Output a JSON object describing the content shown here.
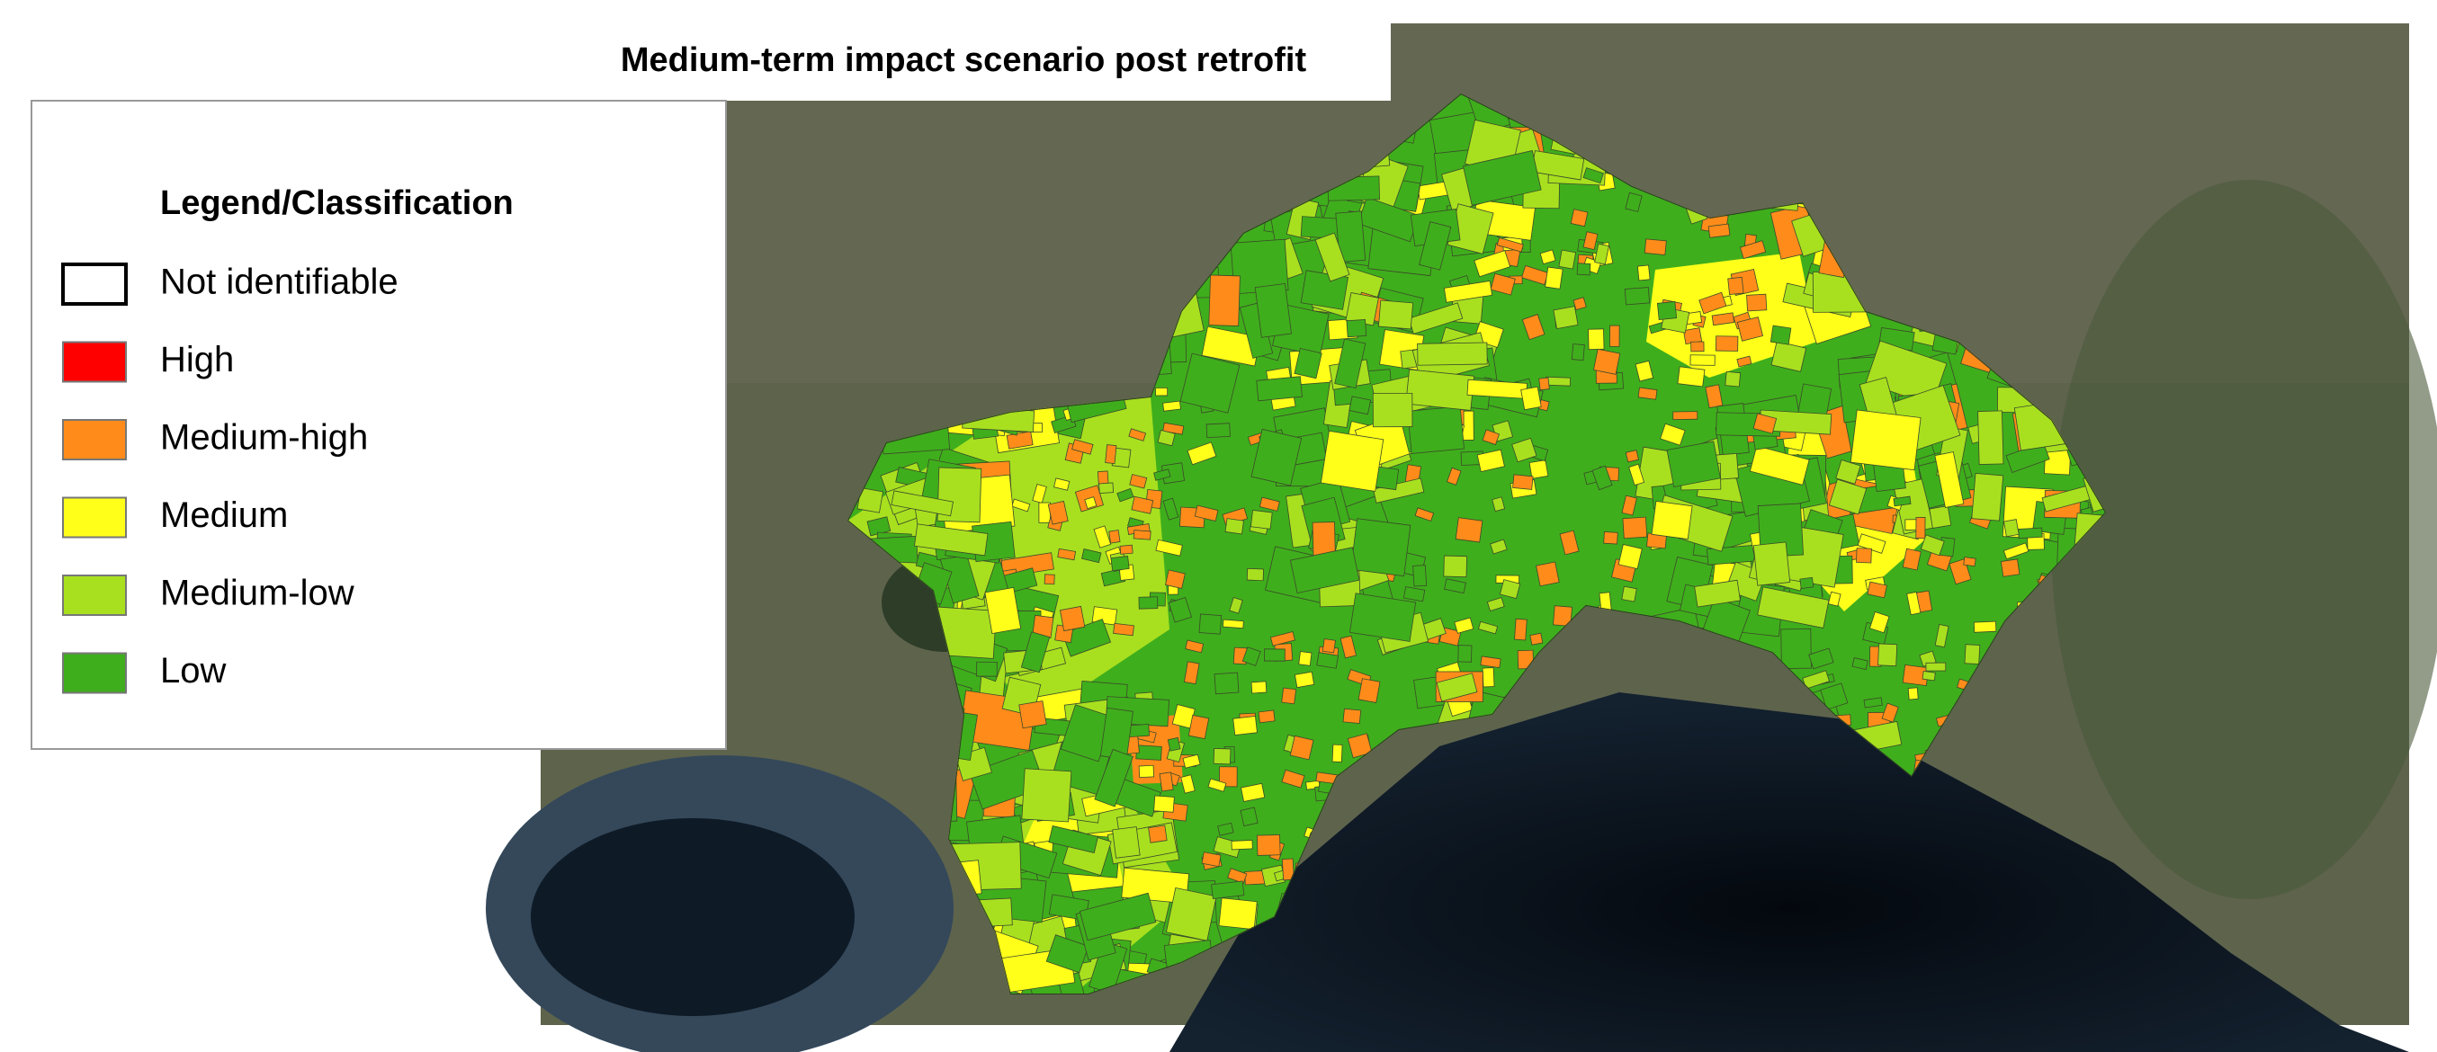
{
  "title": "Medium-term impact scenario post retrofit",
  "legend": {
    "title": "Legend/Classification",
    "items": [
      {
        "label": "Not identifiable",
        "color": "#ffffff"
      },
      {
        "label": "High",
        "color": "#ff0000"
      },
      {
        "label": "Medium-high",
        "color": "#ff8c1a"
      },
      {
        "label": "Medium",
        "color": "#ffff1a"
      },
      {
        "label": "Medium-low",
        "color": "#a8e01f"
      },
      {
        "label": "Low",
        "color": "#3fae1c"
      }
    ]
  }
}
